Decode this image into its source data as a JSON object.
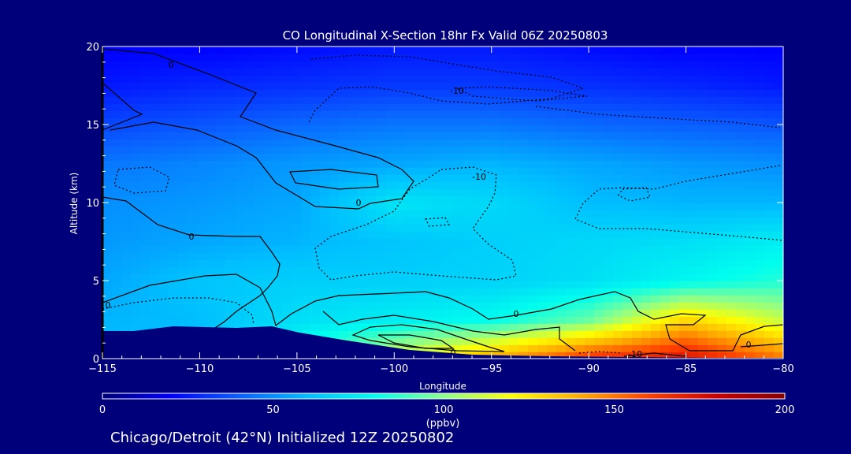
{
  "chart_data": {
    "type": "heatmap",
    "title": "CO Longitudinal X-Section 18hr  Fx Valid 06Z 20250803",
    "xlabel": "Longitude",
    "ylabel": "Altitude (km)",
    "xlim": [
      -115,
      -80
    ],
    "ylim": [
      0,
      20
    ],
    "x_ticks": [
      -115,
      -110,
      -105,
      -100,
      -95,
      -90,
      -85,
      -80
    ],
    "x_tick_labels": [
      "−115",
      "−110",
      "−105",
      "−100",
      "−95",
      "−90",
      "−85",
      "−80"
    ],
    "y_ticks": [
      0,
      5,
      10,
      15,
      20
    ],
    "y_tick_labels": [
      "0",
      "5",
      "10",
      "15",
      "20"
    ],
    "colorbar": {
      "label": "(ppbv)",
      "range": [
        0,
        200
      ],
      "ticks": [
        0,
        50,
        100,
        150,
        200
      ],
      "tick_labels": [
        "0",
        "50",
        "100",
        "150",
        "200"
      ],
      "colors": [
        "#00007a",
        "#0000ff",
        "#0a5fff",
        "#00bfff",
        "#00ffee",
        "#8cff8c",
        "#ffff00",
        "#ffaa00",
        "#ff4000",
        "#cc0000",
        "#8b0000"
      ]
    },
    "co_ppbv": {
      "x": [
        -115,
        -110,
        -105,
        -100,
        -95,
        -90,
        -85,
        -80
      ],
      "y": [
        0,
        2.5,
        5,
        7.5,
        10,
        12.5,
        15,
        17.5,
        20
      ],
      "z": [
        [
          60,
          60,
          85,
          115,
          140,
          165,
          175,
          150
        ],
        [
          58,
          60,
          70,
          75,
          80,
          95,
          130,
          110
        ],
        [
          55,
          62,
          65,
          65,
          66,
          70,
          78,
          85
        ],
        [
          52,
          55,
          58,
          62,
          65,
          68,
          70,
          75
        ],
        [
          50,
          52,
          55,
          72,
          68,
          60,
          58,
          58
        ],
        [
          45,
          48,
          52,
          55,
          58,
          55,
          52,
          50
        ],
        [
          35,
          38,
          42,
          45,
          45,
          42,
          40,
          38
        ],
        [
          25,
          28,
          30,
          32,
          32,
          30,
          28,
          25
        ],
        [
          20,
          20,
          22,
          25,
          25,
          22,
          20,
          20
        ]
      ]
    },
    "contour_labels": [
      "0",
      "0",
      "0",
      "0",
      "-10",
      "-10",
      "0",
      "0",
      "-10",
      "0"
    ],
    "footer_text": "Chicago/Detroit (42°N) Initialized 12Z 20250802",
    "colors": {
      "background": "#00007a",
      "axes": "#ffffff",
      "contour": "#000000",
      "terrain": "#00007a"
    }
  }
}
